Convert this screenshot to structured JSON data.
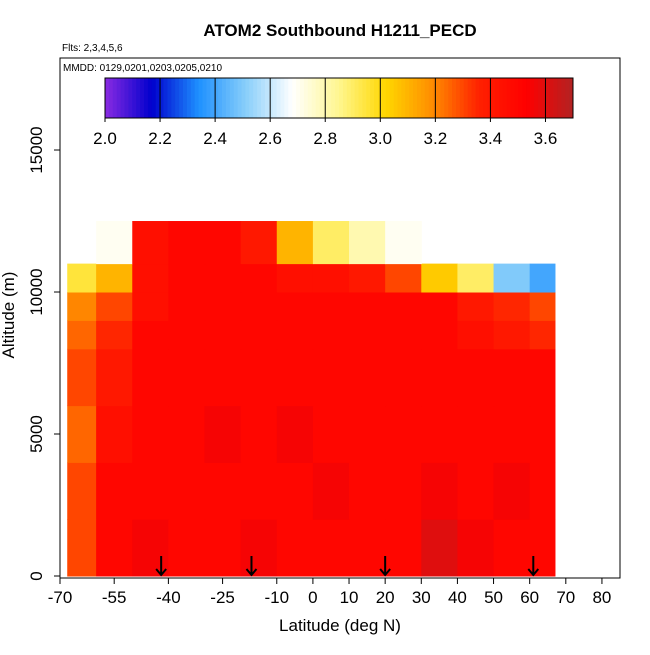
{
  "chart_data": {
    "type": "heatmap",
    "title": "ATOM2 Southbound H1211_PECD",
    "annotations": [
      "Flts: 2,3,4,5,6",
      "MMDD: 0129,0201,0203,0205,0210"
    ],
    "x_label": "Latitude (deg N)",
    "y_label": "Altitude (m)",
    "xlim": [
      -70,
      85
    ],
    "ylim": [
      -70,
      18240
    ],
    "xticks": [
      -70,
      -55,
      -40,
      -25,
      -10,
      0,
      10,
      20,
      30,
      40,
      50,
      60,
      70,
      80
    ],
    "yticks": [
      0,
      5000,
      10000,
      15000
    ],
    "x_edges": [
      -68,
      -60,
      -50,
      -40,
      -30,
      -20,
      -10,
      0,
      10,
      20,
      30,
      40,
      50,
      60,
      67
    ],
    "y_edges": [
      0,
      2000,
      4000,
      6000,
      8000,
      9000,
      10000,
      11000,
      12500
    ],
    "z": [
      [
        3.3,
        3.5,
        3.55,
        3.5,
        3.5,
        3.55,
        3.5,
        3.5,
        3.5,
        3.5,
        3.6,
        3.55,
        3.5,
        3.5
      ],
      [
        3.3,
        3.5,
        3.5,
        3.5,
        3.5,
        3.5,
        3.5,
        3.55,
        3.5,
        3.5,
        3.55,
        3.5,
        3.55,
        3.5
      ],
      [
        3.25,
        3.45,
        3.5,
        3.5,
        3.55,
        3.5,
        3.55,
        3.5,
        3.5,
        3.5,
        3.5,
        3.5,
        3.5,
        3.5
      ],
      [
        3.3,
        3.4,
        3.5,
        3.5,
        3.5,
        3.5,
        3.5,
        3.5,
        3.5,
        3.5,
        3.5,
        3.5,
        3.5,
        3.5
      ],
      [
        3.25,
        3.35,
        3.5,
        3.5,
        3.5,
        3.5,
        3.5,
        3.5,
        3.5,
        3.5,
        3.5,
        3.45,
        3.4,
        3.35
      ],
      [
        3.2,
        3.3,
        3.45,
        3.5,
        3.5,
        3.5,
        3.5,
        3.5,
        3.5,
        3.5,
        3.5,
        3.4,
        3.35,
        3.3
      ],
      [
        2.95,
        3.1,
        3.45,
        3.5,
        3.5,
        3.5,
        3.45,
        3.45,
        3.4,
        3.3,
        3.05,
        2.9,
        2.5,
        2.4
      ],
      [
        null,
        2.7,
        3.45,
        3.5,
        3.5,
        3.4,
        3.1,
        2.9,
        2.8,
        2.7,
        null,
        null,
        null,
        null
      ]
    ],
    "arrows": [
      -42,
      -17,
      20,
      61
    ],
    "colorbar": {
      "lim": [
        2.0,
        3.7
      ],
      "ticks": [
        {
          "value": 2,
          "label": "2.0"
        },
        {
          "value": 2.2,
          "label": "2.2"
        },
        {
          "value": 2.4,
          "label": "2.4"
        },
        {
          "value": 2.6,
          "label": "2.6"
        },
        {
          "value": 2.8,
          "label": "2.8"
        },
        {
          "value": 3,
          "label": "3.0"
        },
        {
          "value": 3.2,
          "label": "3.2"
        },
        {
          "value": 3.4,
          "label": "3.4"
        },
        {
          "value": 3.6,
          "label": "3.6"
        }
      ],
      "colors": [
        "#8a2be2",
        "#0000cd",
        "#1e90ff",
        "#87cefa",
        "#ffffff",
        "#fff68f",
        "#ffd700",
        "#ff8c00",
        "#ff2000",
        "#ff0000",
        "#b22222"
      ]
    }
  }
}
